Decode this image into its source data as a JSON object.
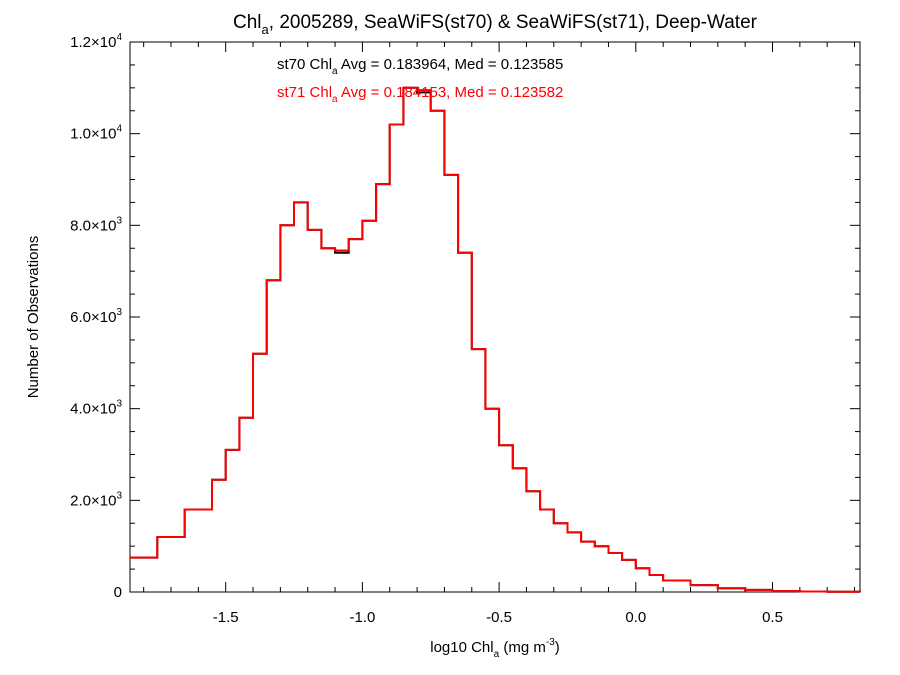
{
  "chart_data": {
    "type": "line",
    "title": {
      "pre": "Chl",
      "sub": "a",
      "post": ", 2005289, SeaWiFS(st70) & SeaWiFS(st71), Deep-Water"
    },
    "xlabel": {
      "pre": "log10 Chl",
      "sub": "a",
      "mid": " (mg m",
      "sup": "-3",
      "post": ")"
    },
    "ylabel": "Number of Observations",
    "xlim": [
      -1.85,
      0.82
    ],
    "ylim": [
      0,
      12000
    ],
    "x_ticks": [
      {
        "value": -1.5,
        "label": "-1.5"
      },
      {
        "value": -1.0,
        "label": "-1.0"
      },
      {
        "value": -0.5,
        "label": "-0.5"
      },
      {
        "value": 0.0,
        "label": "0.0"
      },
      {
        "value": 0.5,
        "label": "0.5"
      }
    ],
    "y_ticks": [
      {
        "value": 0,
        "mant": "0",
        "exp": ""
      },
      {
        "value": 2000,
        "mant": "2.0×10",
        "exp": "3"
      },
      {
        "value": 4000,
        "mant": "4.0×10",
        "exp": "3"
      },
      {
        "value": 6000,
        "mant": "6.0×10",
        "exp": "3"
      },
      {
        "value": 8000,
        "mant": "8.0×10",
        "exp": "3"
      },
      {
        "value": 10000,
        "mant": "1.0×10",
        "exp": "4"
      },
      {
        "value": 12000,
        "mant": "1.2×10",
        "exp": "4"
      }
    ],
    "annotations": [
      {
        "id": "st70",
        "pre": "st70 Chl",
        "sub": "a",
        "post": " Avg = 0.183964, Med = 0.123585",
        "color": "#000000"
      },
      {
        "id": "st71",
        "pre": "st71 Chl",
        "sub": "a",
        "post": " Avg = 0.184153, Med = 0.123582",
        "color": "#ff0000"
      }
    ],
    "series": [
      {
        "name": "st70",
        "color": "#000000",
        "step": true,
        "x": [
          -1.85,
          -1.75,
          -1.65,
          -1.55,
          -1.5,
          -1.45,
          -1.4,
          -1.35,
          -1.3,
          -1.25,
          -1.2,
          -1.15,
          -1.1,
          -1.05,
          -1.0,
          -0.95,
          -0.9,
          -0.85,
          -0.8,
          -0.75,
          -0.7,
          -0.65,
          -0.6,
          -0.55,
          -0.5,
          -0.45,
          -0.4,
          -0.35,
          -0.3,
          -0.25,
          -0.2,
          -0.15,
          -0.1,
          -0.05,
          0.0,
          0.05,
          0.1,
          0.2,
          0.3,
          0.4,
          0.5,
          0.6,
          0.7,
          0.82
        ],
        "y": [
          750,
          1200,
          1800,
          2450,
          3100,
          3800,
          5200,
          6800,
          8000,
          8500,
          7900,
          7500,
          7400,
          7700,
          8100,
          8900,
          10200,
          11000,
          10900,
          10500,
          9100,
          7400,
          5300,
          4000,
          3200,
          2700,
          2200,
          1800,
          1500,
          1300,
          1100,
          1000,
          850,
          700,
          520,
          370,
          250,
          150,
          80,
          45,
          20,
          10,
          5,
          0
        ]
      },
      {
        "name": "st71",
        "color": "#ff0000",
        "step": true,
        "x": [
          -1.85,
          -1.75,
          -1.65,
          -1.55,
          -1.5,
          -1.45,
          -1.4,
          -1.35,
          -1.3,
          -1.25,
          -1.2,
          -1.15,
          -1.1,
          -1.05,
          -1.0,
          -0.95,
          -0.9,
          -0.85,
          -0.8,
          -0.75,
          -0.7,
          -0.65,
          -0.6,
          -0.55,
          -0.5,
          -0.45,
          -0.4,
          -0.35,
          -0.3,
          -0.25,
          -0.2,
          -0.15,
          -0.1,
          -0.05,
          0.0,
          0.05,
          0.1,
          0.2,
          0.3,
          0.4,
          0.5,
          0.6,
          0.7,
          0.82
        ],
        "y": [
          750,
          1200,
          1800,
          2450,
          3100,
          3800,
          5200,
          6800,
          8000,
          8500,
          7900,
          7500,
          7450,
          7700,
          8100,
          8900,
          10200,
          11000,
          10950,
          10500,
          9100,
          7400,
          5300,
          4000,
          3200,
          2700,
          2200,
          1800,
          1500,
          1300,
          1100,
          1000,
          850,
          700,
          520,
          370,
          250,
          150,
          80,
          45,
          20,
          10,
          5,
          0
        ]
      }
    ]
  }
}
